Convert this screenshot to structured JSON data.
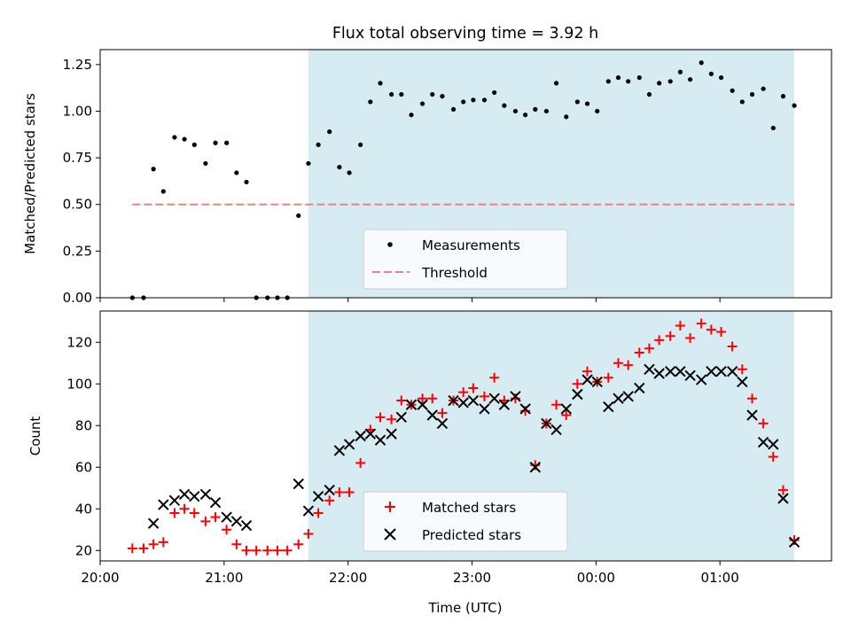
{
  "chart_data": {
    "type": "scatter",
    "title": "Flux total observing time = 3.92 h",
    "xlabel": "Time (UTC)",
    "x_ticks": [
      "20:00",
      "21:00",
      "22:00",
      "23:00",
      "00:00",
      "01:00"
    ],
    "x_range_hours": [
      20.0,
      25.9
    ],
    "highlight_span_hours": [
      21.68,
      25.6
    ],
    "colors": {
      "highlight": "#add8e6",
      "measurement": "#000000",
      "threshold": "#f08080",
      "matched": "#ff0000",
      "predicted": "#000000"
    },
    "top": {
      "ylabel": "Matched/Predicted stars",
      "ylim": [
        0.0,
        1.33
      ],
      "y_ticks": [
        "0.00",
        "0.25",
        "0.50",
        "0.75",
        "1.00",
        "1.25"
      ],
      "legend": {
        "measurements": "Measurements",
        "threshold": "Threshold",
        "position": "lower center"
      },
      "threshold_value": 0.5,
      "threshold_x_range": [
        20.26,
        25.6
      ],
      "measurements": [
        [
          20.26,
          0.0
        ],
        [
          20.35,
          0.0
        ],
        [
          20.43,
          0.69
        ],
        [
          20.51,
          0.57
        ],
        [
          20.6,
          0.86
        ],
        [
          20.68,
          0.85
        ],
        [
          20.76,
          0.82
        ],
        [
          20.85,
          0.72
        ],
        [
          20.93,
          0.83
        ],
        [
          21.02,
          0.83
        ],
        [
          21.1,
          0.67
        ],
        [
          21.18,
          0.62
        ],
        [
          21.26,
          0.0
        ],
        [
          21.35,
          0.0
        ],
        [
          21.43,
          0.0
        ],
        [
          21.51,
          0.0
        ],
        [
          21.6,
          0.44
        ],
        [
          21.68,
          0.72
        ],
        [
          21.76,
          0.82
        ],
        [
          21.85,
          0.89
        ],
        [
          21.93,
          0.7
        ],
        [
          22.01,
          0.67
        ],
        [
          22.1,
          0.82
        ],
        [
          22.18,
          1.05
        ],
        [
          22.26,
          1.15
        ],
        [
          22.35,
          1.09
        ],
        [
          22.43,
          1.09
        ],
        [
          22.51,
          0.98
        ],
        [
          22.6,
          1.04
        ],
        [
          22.68,
          1.09
        ],
        [
          22.76,
          1.08
        ],
        [
          22.85,
          1.01
        ],
        [
          22.93,
          1.05
        ],
        [
          23.01,
          1.06
        ],
        [
          23.1,
          1.06
        ],
        [
          23.18,
          1.1
        ],
        [
          23.26,
          1.03
        ],
        [
          23.35,
          1.0
        ],
        [
          23.43,
          0.98
        ],
        [
          23.51,
          1.01
        ],
        [
          23.6,
          1.0
        ],
        [
          23.68,
          1.15
        ],
        [
          23.76,
          0.97
        ],
        [
          23.85,
          1.05
        ],
        [
          23.93,
          1.04
        ],
        [
          24.01,
          1.0
        ],
        [
          24.1,
          1.16
        ],
        [
          24.18,
          1.18
        ],
        [
          24.26,
          1.16
        ],
        [
          24.35,
          1.18
        ],
        [
          24.43,
          1.09
        ],
        [
          24.51,
          1.15
        ],
        [
          24.6,
          1.16
        ],
        [
          24.68,
          1.21
        ],
        [
          24.76,
          1.17
        ],
        [
          24.85,
          1.26
        ],
        [
          24.93,
          1.2
        ],
        [
          25.01,
          1.18
        ],
        [
          25.1,
          1.11
        ],
        [
          25.18,
          1.05
        ],
        [
          25.26,
          1.09
        ],
        [
          25.35,
          1.12
        ],
        [
          25.43,
          0.91
        ],
        [
          25.51,
          1.08
        ],
        [
          25.6,
          1.03
        ]
      ]
    },
    "bottom": {
      "ylabel": "Count",
      "ylim": [
        15,
        135
      ],
      "y_ticks": [
        "20",
        "40",
        "60",
        "80",
        "100",
        "120"
      ],
      "legend": {
        "matched": "Matched stars",
        "predicted": "Predicted stars",
        "position": "lower center"
      },
      "matched": [
        [
          20.26,
          21
        ],
        [
          20.35,
          21
        ],
        [
          20.43,
          23
        ],
        [
          20.51,
          24
        ],
        [
          20.6,
          38
        ],
        [
          20.68,
          40
        ],
        [
          20.76,
          38
        ],
        [
          20.85,
          34
        ],
        [
          20.93,
          36
        ],
        [
          21.02,
          30
        ],
        [
          21.1,
          23
        ],
        [
          21.18,
          20
        ],
        [
          21.26,
          20
        ],
        [
          21.35,
          20
        ],
        [
          21.43,
          20
        ],
        [
          21.51,
          20
        ],
        [
          21.6,
          23
        ],
        [
          21.68,
          28
        ],
        [
          21.76,
          38
        ],
        [
          21.85,
          44
        ],
        [
          21.93,
          48
        ],
        [
          22.01,
          48
        ],
        [
          22.1,
          62
        ],
        [
          22.18,
          78
        ],
        [
          22.26,
          84
        ],
        [
          22.35,
          83
        ],
        [
          22.43,
          92
        ],
        [
          22.51,
          90
        ],
        [
          22.6,
          93
        ],
        [
          22.68,
          93
        ],
        [
          22.76,
          86
        ],
        [
          22.85,
          92
        ],
        [
          22.93,
          96
        ],
        [
          23.01,
          98
        ],
        [
          23.1,
          94
        ],
        [
          23.18,
          103
        ],
        [
          23.26,
          92
        ],
        [
          23.35,
          93
        ],
        [
          23.43,
          87
        ],
        [
          23.51,
          61
        ],
        [
          23.6,
          81
        ],
        [
          23.68,
          90
        ],
        [
          23.76,
          85
        ],
        [
          23.85,
          100
        ],
        [
          23.93,
          106
        ],
        [
          24.01,
          101
        ],
        [
          24.1,
          103
        ],
        [
          24.18,
          110
        ],
        [
          24.26,
          109
        ],
        [
          24.35,
          115
        ],
        [
          24.43,
          117
        ],
        [
          24.51,
          121
        ],
        [
          24.6,
          123
        ],
        [
          24.68,
          128
        ],
        [
          24.76,
          122
        ],
        [
          24.85,
          129
        ],
        [
          24.93,
          126
        ],
        [
          25.01,
          125
        ],
        [
          25.1,
          118
        ],
        [
          25.18,
          107
        ],
        [
          25.26,
          93
        ],
        [
          25.35,
          81
        ],
        [
          25.43,
          65
        ],
        [
          25.51,
          49
        ],
        [
          25.6,
          25
        ]
      ],
      "predicted": [
        [
          20.43,
          33
        ],
        [
          20.51,
          42
        ],
        [
          20.6,
          44
        ],
        [
          20.68,
          47
        ],
        [
          20.76,
          46
        ],
        [
          20.85,
          47
        ],
        [
          20.93,
          43
        ],
        [
          21.02,
          36
        ],
        [
          21.1,
          34
        ],
        [
          21.18,
          32
        ],
        [
          21.6,
          52
        ],
        [
          21.68,
          39
        ],
        [
          21.76,
          46
        ],
        [
          21.85,
          49
        ],
        [
          21.93,
          68
        ],
        [
          22.01,
          71
        ],
        [
          22.1,
          75
        ],
        [
          22.18,
          76
        ],
        [
          22.26,
          73
        ],
        [
          22.35,
          76
        ],
        [
          22.43,
          84
        ],
        [
          22.51,
          90
        ],
        [
          22.6,
          90
        ],
        [
          22.68,
          85
        ],
        [
          22.76,
          81
        ],
        [
          22.85,
          92
        ],
        [
          22.93,
          91
        ],
        [
          23.01,
          92
        ],
        [
          23.1,
          88
        ],
        [
          23.18,
          93
        ],
        [
          23.26,
          90
        ],
        [
          23.35,
          94
        ],
        [
          23.43,
          88
        ],
        [
          23.51,
          60
        ],
        [
          23.6,
          81
        ],
        [
          23.68,
          78
        ],
        [
          23.76,
          88
        ],
        [
          23.85,
          95
        ],
        [
          23.93,
          102
        ],
        [
          24.01,
          101
        ],
        [
          24.1,
          89
        ],
        [
          24.18,
          93
        ],
        [
          24.26,
          94
        ],
        [
          24.35,
          98
        ],
        [
          24.43,
          107
        ],
        [
          24.51,
          105
        ],
        [
          24.6,
          106
        ],
        [
          24.68,
          106
        ],
        [
          24.76,
          104
        ],
        [
          24.85,
          102
        ],
        [
          24.93,
          106
        ],
        [
          25.01,
          106
        ],
        [
          25.1,
          106
        ],
        [
          25.18,
          101
        ],
        [
          25.26,
          85
        ],
        [
          25.35,
          72
        ],
        [
          25.43,
          71
        ],
        [
          25.51,
          45
        ],
        [
          25.6,
          24
        ]
      ]
    }
  }
}
